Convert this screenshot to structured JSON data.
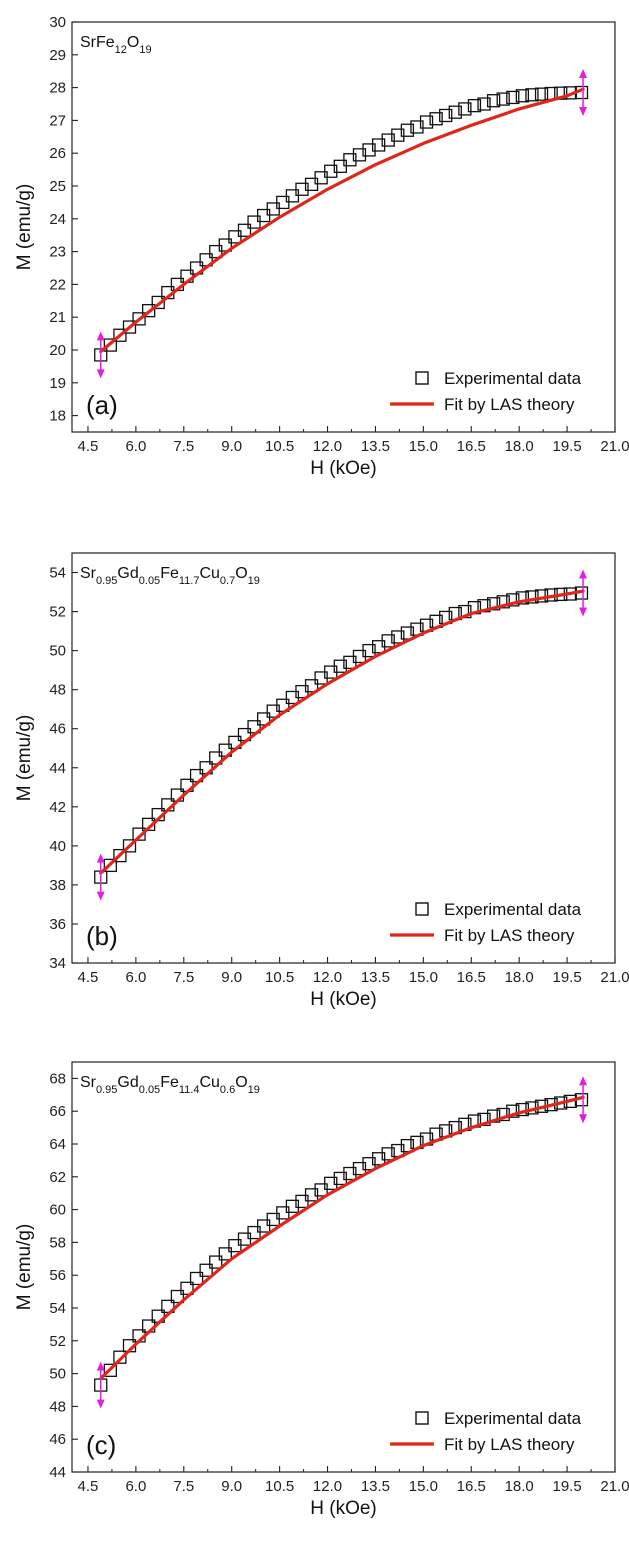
{
  "colors": {
    "fit": "#e0251b",
    "marker": "#111111",
    "arrow": "#e020e0",
    "axis": "#222222"
  },
  "legend": {
    "experimental": "Experimental data",
    "fit": "Fit by LAS theory"
  },
  "chart_data": [
    {
      "type": "scatter",
      "panel_label": "(a)",
      "compound": [
        {
          "t": "SrFe"
        },
        {
          "t": "12",
          "sub": true
        },
        {
          "t": "O"
        },
        {
          "t": "19",
          "sub": true
        }
      ],
      "xlabel": "H (kOe)",
      "ylabel": "M (emu/g)",
      "xlim": [
        4.0,
        21.0
      ],
      "ylim": [
        17.5,
        30.0
      ],
      "xticks": [
        "4.5",
        "6.0",
        "7.5",
        "9.0",
        "10.5",
        "12.0",
        "13.5",
        "15.0",
        "16.5",
        "18.0",
        "19.5",
        "21.0"
      ],
      "yticks": [
        "18",
        "19",
        "20",
        "21",
        "22",
        "23",
        "24",
        "25",
        "26",
        "27",
        "28",
        "29",
        "30"
      ],
      "legend_placement": "bottom-right",
      "grid": false,
      "series": [
        {
          "name": "Experimental data",
          "kind": "markers",
          "x": [
            4.9,
            5.2,
            5.5,
            5.8,
            6.1,
            6.4,
            6.7,
            7.0,
            7.3,
            7.6,
            7.9,
            8.2,
            8.5,
            8.8,
            9.1,
            9.4,
            9.7,
            10.0,
            10.3,
            10.6,
            10.9,
            11.2,
            11.5,
            11.8,
            12.1,
            12.4,
            12.7,
            13.0,
            13.3,
            13.6,
            13.9,
            14.2,
            14.5,
            14.8,
            15.1,
            15.4,
            15.7,
            16.0,
            16.3,
            16.6,
            16.9,
            17.2,
            17.5,
            17.8,
            18.1,
            18.4,
            18.7,
            19.0,
            19.3,
            19.6,
            19.95
          ],
          "y": [
            19.85,
            20.15,
            20.45,
            20.7,
            20.95,
            21.2,
            21.45,
            21.75,
            22.0,
            22.25,
            22.5,
            22.75,
            23.0,
            23.2,
            23.45,
            23.65,
            23.9,
            24.1,
            24.3,
            24.5,
            24.7,
            24.9,
            25.05,
            25.25,
            25.45,
            25.6,
            25.8,
            25.95,
            26.1,
            26.25,
            26.4,
            26.55,
            26.7,
            26.8,
            26.95,
            27.05,
            27.15,
            27.25,
            27.35,
            27.45,
            27.5,
            27.6,
            27.65,
            27.7,
            27.75,
            27.78,
            27.8,
            27.82,
            27.83,
            27.84,
            27.85
          ]
        },
        {
          "name": "Fit by LAS theory",
          "kind": "line",
          "x": [
            4.9,
            6.0,
            7.5,
            9.0,
            10.5,
            12.0,
            13.5,
            15.0,
            16.5,
            18.0,
            19.5,
            20.0
          ],
          "y": [
            19.95,
            20.85,
            22.0,
            23.1,
            24.05,
            24.9,
            25.65,
            26.3,
            26.85,
            27.35,
            27.75,
            27.95
          ]
        }
      ],
      "arrows_at_x": [
        4.9,
        20.0
      ]
    },
    {
      "type": "scatter",
      "panel_label": "(b)",
      "compound": [
        {
          "t": "Sr"
        },
        {
          "t": "0.95",
          "sub": true
        },
        {
          "t": "Gd"
        },
        {
          "t": "0.05",
          "sub": true
        },
        {
          "t": "Fe"
        },
        {
          "t": "11.7",
          "sub": true
        },
        {
          "t": "Cu"
        },
        {
          "t": "0.7",
          "sub": true
        },
        {
          "t": "O"
        },
        {
          "t": "19",
          "sub": true
        }
      ],
      "xlabel": "H (kOe)",
      "ylabel": "M (emu/g)",
      "xlim": [
        4.0,
        21.0
      ],
      "ylim": [
        34.0,
        55.0
      ],
      "xticks": [
        "4.5",
        "6.0",
        "7.5",
        "9.0",
        "10.5",
        "12.0",
        "13.5",
        "15.0",
        "16.5",
        "18.0",
        "19.5",
        "21.0"
      ],
      "yticks": [
        "34",
        "36",
        "38",
        "40",
        "42",
        "44",
        "46",
        "48",
        "50",
        "52",
        "54"
      ],
      "legend_placement": "bottom-right",
      "grid": false,
      "series": [
        {
          "name": "Experimental data",
          "kind": "markers",
          "x": [
            4.9,
            5.2,
            5.5,
            5.8,
            6.1,
            6.4,
            6.7,
            7.0,
            7.3,
            7.6,
            7.9,
            8.2,
            8.5,
            8.8,
            9.1,
            9.4,
            9.7,
            10.0,
            10.3,
            10.6,
            10.9,
            11.2,
            11.5,
            11.8,
            12.1,
            12.4,
            12.7,
            13.0,
            13.3,
            13.6,
            13.9,
            14.2,
            14.5,
            14.8,
            15.1,
            15.4,
            15.7,
            16.0,
            16.3,
            16.6,
            16.9,
            17.2,
            17.5,
            17.8,
            18.1,
            18.4,
            18.7,
            19.0,
            19.3,
            19.6,
            19.95
          ],
          "y": [
            38.4,
            39.0,
            39.5,
            40.0,
            40.6,
            41.1,
            41.6,
            42.1,
            42.6,
            43.1,
            43.6,
            44.0,
            44.5,
            44.9,
            45.3,
            45.7,
            46.1,
            46.5,
            46.9,
            47.2,
            47.6,
            47.9,
            48.2,
            48.6,
            48.9,
            49.2,
            49.4,
            49.7,
            50.0,
            50.2,
            50.5,
            50.7,
            50.9,
            51.1,
            51.3,
            51.5,
            51.7,
            51.9,
            52.0,
            52.2,
            52.3,
            52.4,
            52.5,
            52.6,
            52.7,
            52.75,
            52.8,
            52.85,
            52.88,
            52.9,
            52.95
          ]
        },
        {
          "name": "Fit by LAS theory",
          "kind": "line",
          "x": [
            4.9,
            6.0,
            7.5,
            9.0,
            10.5,
            12.0,
            13.5,
            15.0,
            16.5,
            18.0,
            19.5,
            20.0
          ],
          "y": [
            38.6,
            40.3,
            42.6,
            44.8,
            46.7,
            48.3,
            49.7,
            50.9,
            51.9,
            52.5,
            52.9,
            53.05
          ]
        }
      ],
      "arrows_at_x": [
        4.9,
        20.0
      ]
    },
    {
      "type": "scatter",
      "panel_label": "(c)",
      "compound": [
        {
          "t": "Sr"
        },
        {
          "t": "0.95",
          "sub": true
        },
        {
          "t": "Gd"
        },
        {
          "t": "0.05",
          "sub": true
        },
        {
          "t": "Fe"
        },
        {
          "t": "11.4",
          "sub": true
        },
        {
          "t": "Cu"
        },
        {
          "t": "0.6",
          "sub": true
        },
        {
          "t": "O"
        },
        {
          "t": "19",
          "sub": true
        }
      ],
      "xlabel": "H (kOe)",
      "ylabel": "M (emu/g)",
      "xlim": [
        4.0,
        21.0
      ],
      "ylim": [
        44.0,
        69.0
      ],
      "xticks": [
        "4.5",
        "6.0",
        "7.5",
        "9.0",
        "10.5",
        "12.0",
        "13.5",
        "15.0",
        "16.5",
        "18.0",
        "19.5",
        "21.0"
      ],
      "yticks": [
        "44",
        "46",
        "48",
        "50",
        "52",
        "54",
        "56",
        "58",
        "60",
        "62",
        "64",
        "66",
        "68"
      ],
      "legend_placement": "bottom-right",
      "grid": false,
      "series": [
        {
          "name": "Experimental data",
          "kind": "markers",
          "x": [
            4.9,
            5.2,
            5.5,
            5.8,
            6.1,
            6.4,
            6.7,
            7.0,
            7.3,
            7.6,
            7.9,
            8.2,
            8.5,
            8.8,
            9.1,
            9.4,
            9.7,
            10.0,
            10.3,
            10.6,
            10.9,
            11.2,
            11.5,
            11.8,
            12.1,
            12.4,
            12.7,
            13.0,
            13.3,
            13.6,
            13.9,
            14.2,
            14.5,
            14.8,
            15.1,
            15.4,
            15.7,
            16.0,
            16.3,
            16.6,
            16.9,
            17.2,
            17.5,
            17.8,
            18.1,
            18.4,
            18.7,
            19.0,
            19.3,
            19.6,
            19.95
          ],
          "y": [
            49.3,
            50.2,
            51.0,
            51.7,
            52.3,
            52.9,
            53.5,
            54.1,
            54.7,
            55.2,
            55.8,
            56.3,
            56.8,
            57.3,
            57.8,
            58.2,
            58.6,
            59.0,
            59.4,
            59.8,
            60.2,
            60.5,
            60.9,
            61.2,
            61.6,
            61.9,
            62.2,
            62.5,
            62.8,
            63.1,
            63.4,
            63.6,
            63.9,
            64.1,
            64.3,
            64.6,
            64.8,
            65.0,
            65.2,
            65.4,
            65.5,
            65.7,
            65.8,
            66.0,
            66.1,
            66.2,
            66.3,
            66.4,
            66.5,
            66.6,
            66.7
          ]
        },
        {
          "name": "Fit by LAS theory",
          "kind": "line",
          "x": [
            4.9,
            6.0,
            7.5,
            9.0,
            10.5,
            12.0,
            13.5,
            15.0,
            16.5,
            18.0,
            19.5,
            20.0
          ],
          "y": [
            49.7,
            51.8,
            54.5,
            57.0,
            59.0,
            60.9,
            62.5,
            63.9,
            65.0,
            65.9,
            66.6,
            66.85
          ]
        }
      ],
      "arrows_at_x": [
        4.9,
        20.0
      ]
    }
  ]
}
